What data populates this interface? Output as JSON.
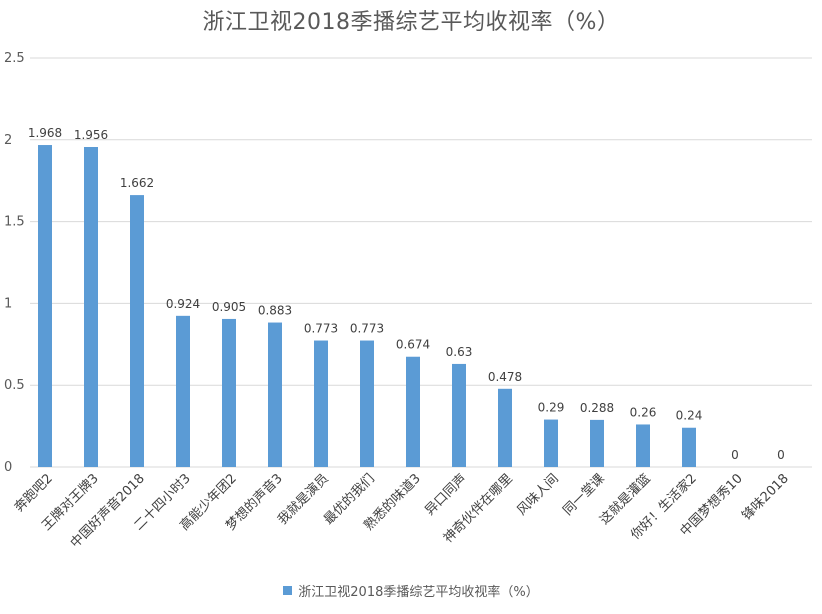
{
  "chart_data": {
    "type": "bar",
    "title": "浙江卫视2018季播综艺平均收视率（%）",
    "categories": [
      "奔跑吧2",
      "王牌对王牌3",
      "中国好声音2018",
      "二十四小时3",
      "高能少年团2",
      "梦想的声音3",
      "我就是演员",
      "最优的我们",
      "熟悉的味道3",
      "异口同声",
      "神奇伙伴在哪里",
      "风味人间",
      "同一堂课",
      "这就是灌篮",
      "你好！生活家2",
      "中国梦想秀10",
      "锋味2018"
    ],
    "series": [
      {
        "name": "浙江卫视2018季播综艺平均收视率（%）",
        "values": [
          1.968,
          1.956,
          1.662,
          0.924,
          0.905,
          0.883,
          0.773,
          0.773,
          0.674,
          0.63,
          0.478,
          0.29,
          0.288,
          0.26,
          0.24,
          0,
          0
        ],
        "labels": [
          "1.968",
          "1.956",
          "1.662",
          "0.924",
          "0.905",
          "0.883",
          "0.773",
          "0.773",
          "0.674",
          "0.63",
          "0.478",
          "0.29",
          "0.288",
          "0.26",
          "0.24",
          "0",
          "0"
        ]
      }
    ],
    "ylim": [
      0,
      2.5
    ],
    "yticks": [
      "0",
      "0.5",
      "1",
      "1.5",
      "2",
      "2.5"
    ],
    "yticks_values": [
      0,
      0.5,
      1,
      1.5,
      2,
      2.5
    ],
    "grid": true,
    "legend": "bottom",
    "bar_color": "#5b9bd5",
    "grid_color": "#d9d9d9"
  }
}
